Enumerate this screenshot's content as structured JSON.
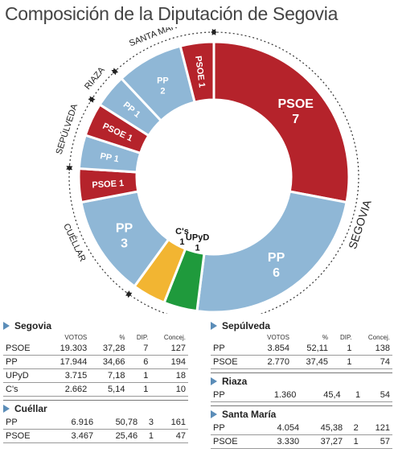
{
  "title": "Composición de la Diputación de Segovia",
  "colors": {
    "PP": "#8fb7d6",
    "PSOE": "#b5232b",
    "UPyD": "#1f9a3c",
    "C's": "#f2b532"
  },
  "chart_data": {
    "type": "pie",
    "segments": [
      {
        "party": "PSOE",
        "seats": 7,
        "label": "PSOE",
        "value": "7",
        "district": "Segovia"
      },
      {
        "party": "PP",
        "seats": 6,
        "label": "PP",
        "value": "6",
        "district": "Segovia"
      },
      {
        "party": "UPyD",
        "seats": 1,
        "label": "UPyD",
        "value": "1",
        "district": "Segovia"
      },
      {
        "party": "C's",
        "seats": 1,
        "label": "C's",
        "value": "1",
        "district": "Segovia"
      },
      {
        "party": "PP",
        "seats": 3,
        "label": "PP",
        "value": "3",
        "district": "Cuéllar"
      },
      {
        "party": "PSOE",
        "seats": 1,
        "label": "PSOE",
        "value": "1",
        "district": "Cuéllar"
      },
      {
        "party": "PP",
        "seats": 1,
        "label": "PP",
        "value": "1",
        "district": "Sepúlveda"
      },
      {
        "party": "PSOE",
        "seats": 1,
        "label": "PSOE",
        "value": "1",
        "district": "Sepúlveda"
      },
      {
        "party": "PP",
        "seats": 1,
        "label": "PP",
        "value": "1",
        "district": "Riaza"
      },
      {
        "party": "PP",
        "seats": 2,
        "label": "PP",
        "value": "2",
        "district": "Santa María"
      },
      {
        "party": "PSOE",
        "seats": 1,
        "label": "PSOE",
        "value": "1",
        "district": "Santa María"
      }
    ],
    "district_labels": [
      "SEGOVIA",
      "CUÉLLAR",
      "SEPÚLVEDA",
      "RIAZA",
      "SANTA MARÍA"
    ]
  },
  "tables": {
    "headers": [
      "VOTOS",
      "%",
      "DIP.",
      "Concej."
    ],
    "left": [
      {
        "name": "Segovia",
        "rows": [
          [
            "PSOE",
            "19.303",
            "37,28",
            "7",
            "127"
          ],
          [
            "PP",
            "17.944",
            "34,66",
            "6",
            "194"
          ],
          [
            "UPyD",
            "3.715",
            "7,18",
            "1",
            "18"
          ],
          [
            "C's",
            "2.662",
            "5,14",
            "1",
            "10"
          ]
        ]
      },
      {
        "name": "Cuéllar",
        "rows": [
          [
            "PP",
            "6.916",
            "50,78",
            "3",
            "161"
          ],
          [
            "PSOE",
            "3.467",
            "25,46",
            "1",
            "47"
          ]
        ]
      }
    ],
    "right": [
      {
        "name": "Sepúlveda",
        "rows": [
          [
            "PP",
            "3.854",
            "52,11",
            "1",
            "138"
          ],
          [
            "PSOE",
            "2.770",
            "37,45",
            "1",
            "74"
          ]
        ]
      },
      {
        "name": "Riaza",
        "rows": [
          [
            "PP",
            "1.360",
            "45,4",
            "1",
            "54"
          ]
        ]
      },
      {
        "name": "Santa María",
        "rows": [
          [
            "PP",
            "4.054",
            "45,38",
            "2",
            "121"
          ],
          [
            "PSOE",
            "3.330",
            "37,27",
            "1",
            "57"
          ]
        ]
      }
    ]
  }
}
